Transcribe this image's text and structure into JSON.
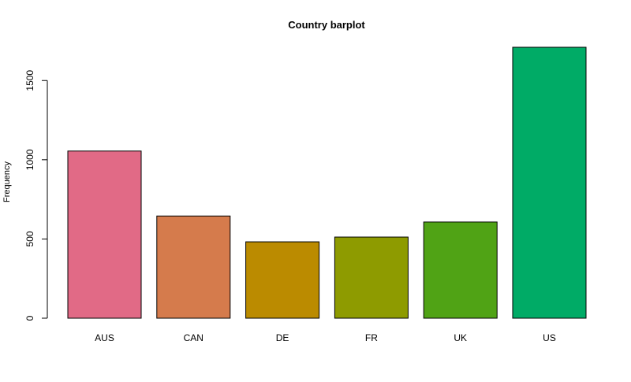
{
  "chart_data": {
    "type": "bar",
    "title": "Country barplot",
    "xlabel": "",
    "ylabel": "Frequency",
    "categories": [
      "AUS",
      "CAN",
      "DE",
      "FR",
      "UK",
      "US"
    ],
    "values": [
      1055,
      645,
      482,
      512,
      607,
      1710
    ],
    "colors": [
      "#E16A86",
      "#D57B4C",
      "#BB8B00",
      "#8E9B00",
      "#50A315",
      "#00AB66"
    ],
    "yticks": [
      0,
      500,
      1000,
      1500
    ],
    "ylim": [
      0,
      1710
    ],
    "grid": false,
    "legend": "none"
  }
}
